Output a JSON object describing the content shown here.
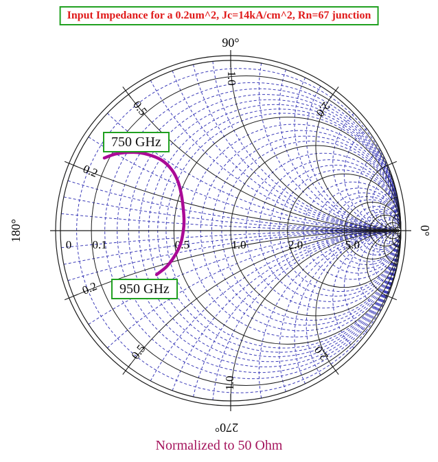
{
  "header": {
    "title": "Input Impedance for a 0.2um^2, Jc=14kA/cm^2, Rn=67 junction"
  },
  "caption": {
    "text": "Normalized to 50 Ohm"
  },
  "colors": {
    "grid_minor_blue": "#3a3ab8",
    "grid_major_black": "#1a1a1a",
    "trace_magenta": "#aa0a96",
    "title_red": "#e01a1a",
    "box_green": "#1fa01f",
    "caption_raspberry": "#a4145c"
  },
  "chart_data": {
    "type": "smith",
    "title": "Input Impedance for a 0.2um^2, Jc=14kA/cm^2, Rn=67 junction",
    "caption": "Normalized to 50 Ohm",
    "normalized_to_ohms": 50,
    "grid": {
      "grid_on": true,
      "resistance_major": [
        0.1,
        0.5,
        1,
        2,
        5,
        10,
        20,
        50
      ],
      "resistance_minor": [
        0.05,
        0.15,
        0.2,
        0.25,
        0.3,
        0.35,
        0.4,
        0.45,
        0.6,
        0.7,
        0.8,
        0.9,
        1.2,
        1.4,
        1.6,
        1.8,
        2.5,
        3,
        3.5,
        4,
        4.5,
        6,
        7,
        8,
        9,
        12,
        15,
        30
      ],
      "reactance_major": [
        0.2,
        0.5,
        1,
        2,
        5,
        10,
        20,
        50
      ],
      "reactance_minor": [
        0.05,
        0.1,
        0.15,
        0.3,
        0.4,
        0.6,
        0.7,
        0.8,
        0.9,
        1.2,
        1.4,
        1.6,
        1.8,
        2.5,
        3,
        4,
        6,
        8,
        15,
        30
      ],
      "axis_labels": [
        {
          "r": 0,
          "label": "0"
        },
        {
          "r": 0.1,
          "label": "0.1"
        },
        {
          "r": 0.5,
          "label": "0.5"
        },
        {
          "r": 1,
          "label": "1.0"
        },
        {
          "r": 2,
          "label": "2.0"
        },
        {
          "r": 5,
          "label": "5.0"
        }
      ],
      "rim_labels": [
        {
          "x": 0.2,
          "label": "0.2"
        },
        {
          "x": 0.5,
          "label": "0.5"
        },
        {
          "x": 1,
          "label": "1.0"
        },
        {
          "x": 2,
          "label": "2.0"
        }
      ],
      "angle_labels": [
        {
          "deg": 90,
          "label": "90°"
        },
        {
          "deg": 180,
          "label": "180°"
        },
        {
          "deg": 0,
          "label": "0°"
        },
        {
          "deg": 270,
          "label": "270°"
        }
      ],
      "rim_tick_reactances": [
        0.2,
        0.5,
        2,
        5
      ]
    },
    "trace": {
      "name": "input-impedance-750-950GHz",
      "start_label": "750 GHz",
      "end_label": "950 GHz",
      "gamma_points": [
        [
          -0.742,
          0.427
        ],
        [
          -0.669,
          0.452
        ],
        [
          -0.569,
          0.46
        ],
        [
          -0.488,
          0.448
        ],
        [
          -0.407,
          0.415
        ],
        [
          -0.347,
          0.359
        ],
        [
          -0.31,
          0.29
        ],
        [
          -0.29,
          0.214
        ],
        [
          -0.278,
          0.125
        ],
        [
          -0.274,
          0.056
        ],
        [
          -0.278,
          0.0
        ],
        [
          -0.294,
          -0.077
        ],
        [
          -0.327,
          -0.145
        ],
        [
          -0.375,
          -0.21
        ],
        [
          -0.435,
          -0.258
        ]
      ]
    }
  }
}
